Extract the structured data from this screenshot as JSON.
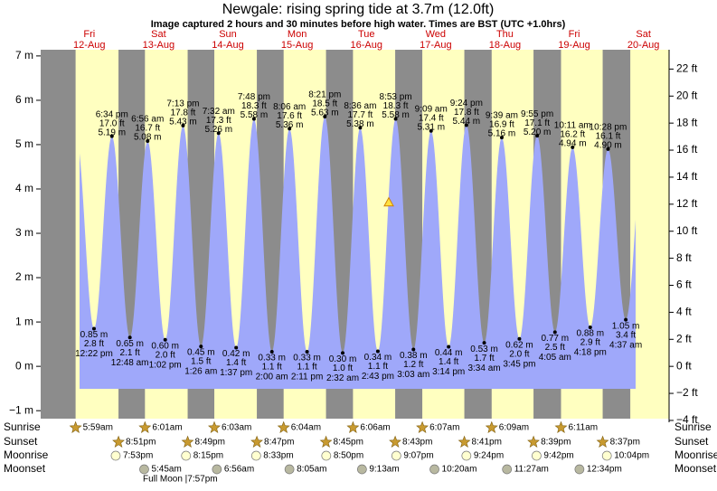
{
  "chart_data": {
    "type": "tide",
    "title": "Newgale: rising  spring tide at 3.7m (12.0ft)",
    "subtitle": "Image captured 2 hours and 30 minutes before high water. Times are BST (UTC +1.0hrs)",
    "days": [
      {
        "weekday": "Fri",
        "date": "12-Aug"
      },
      {
        "weekday": "Sat",
        "date": "13-Aug"
      },
      {
        "weekday": "Sun",
        "date": "14-Aug"
      },
      {
        "weekday": "Mon",
        "date": "15-Aug"
      },
      {
        "weekday": "Tue",
        "date": "16-Aug"
      },
      {
        "weekday": "Wed",
        "date": "17-Aug"
      },
      {
        "weekday": "Thu",
        "date": "18-Aug"
      },
      {
        "weekday": "Fri",
        "date": "19-Aug"
      },
      {
        "weekday": "Sat",
        "date": "20-Aug"
      }
    ],
    "tides": {
      "times": [
        "12:22 pm",
        "6:34 pm",
        "12:48 am",
        "6:56 am",
        "1:02 pm",
        "7:13 pm",
        "1:26 am",
        "7:32 am",
        "1:37 pm",
        "7:48 pm",
        "2:00 am",
        "8:06 am",
        "2:11 pm",
        "8:21 pm",
        "2:32 am",
        "8:36 am",
        "2:43 pm",
        "8:53 pm",
        "3:03 am",
        "9:09 am",
        "3:14 pm",
        "9:24 pm",
        "3:34 am",
        "9:39 am",
        "3:45 pm",
        "9:55 pm",
        "4:05 am",
        "10:11 am",
        "4:18 pm",
        "10:28 pm",
        "4:37 am"
      ],
      "values": [
        0.85,
        5.19,
        0.65,
        5.08,
        0.6,
        5.43,
        0.45,
        5.26,
        0.42,
        5.58,
        0.33,
        5.36,
        0.33,
        5.63,
        0.3,
        5.38,
        0.34,
        5.58,
        0.38,
        5.31,
        0.44,
        5.44,
        0.53,
        5.16,
        0.62,
        5.2,
        0.77,
        4.94,
        0.88,
        4.9,
        1.05
      ],
      "value_labels": [
        "0.85 m",
        "5.19 m",
        "0.65 m",
        "5.08 m",
        "0.60 m",
        "5.43 m",
        "0.45 m",
        "5.26 m",
        "0.42 m",
        "5.58 m",
        "0.33 m",
        "5.36 m",
        "0.33 m",
        "5.63 m",
        "0.30 m",
        "5.38 m",
        "0.34 m",
        "5.58 m",
        "0.38 m",
        "5.31 m",
        "0.44 m",
        "5.44 m",
        "0.53 m",
        "5.16 m",
        "0.62 m",
        "5.20 m",
        "0.77 m",
        "4.94 m",
        "0.88 m",
        "4.90 m",
        "1.05 m"
      ],
      "values_ft": [
        2.8,
        17.0,
        2.1,
        16.7,
        2.0,
        17.8,
        1.5,
        17.3,
        1.4,
        18.3,
        1.1,
        17.6,
        1.1,
        18.5,
        1.0,
        17.7,
        1.1,
        18.3,
        1.2,
        17.4,
        1.4,
        17.8,
        1.7,
        16.9,
        2.0,
        17.1,
        2.5,
        16.2,
        2.9,
        16.1,
        3.4
      ],
      "value_labels_ft": [
        "2.8 ft",
        "17.0 ft",
        "2.1 ft",
        "16.7 ft",
        "2.0 ft",
        "17.8 ft",
        "1.5 ft",
        "17.3 ft",
        "1.4 ft",
        "18.3 ft",
        "1.1 ft",
        "17.6 ft",
        "1.1 ft",
        "18.5 ft",
        "1.0 ft",
        "17.7 ft",
        "1.1 ft",
        "18.3 ft",
        "1.2 ft",
        "17.4 ft",
        "1.4 ft",
        "17.8 ft",
        "1.7 ft",
        "16.9 ft",
        "2.0 ft",
        "17.1 ft",
        "2.5 ft",
        "16.2 ft",
        "2.9 ft",
        "16.1 ft",
        "3.4 ft"
      ]
    },
    "now_marker": 3.7,
    "ylim": [
      -1.18,
      7.14
    ],
    "yticks": [
      {
        "value": 7,
        "label": "7 m"
      },
      {
        "value": 6,
        "label": "6 m"
      },
      {
        "value": 5,
        "label": "5 m"
      },
      {
        "value": 4,
        "label": "4 m"
      },
      {
        "value": 3,
        "label": "3 m"
      },
      {
        "value": 2,
        "label": "2 m"
      },
      {
        "value": 1,
        "label": "1 m"
      },
      {
        "value": 0,
        "label": "0 m"
      },
      {
        "value": -1,
        "label": "−1 m"
      }
    ],
    "y2lim": [
      -3.87,
      23.43
    ],
    "y2ticks": [
      {
        "value": 22,
        "label": "22 ft"
      },
      {
        "value": 20,
        "label": "20 ft"
      },
      {
        "value": 18,
        "label": "18 ft"
      },
      {
        "value": 16,
        "label": "16 ft"
      },
      {
        "value": 14,
        "label": "14 ft"
      },
      {
        "value": 12,
        "label": "12 ft"
      },
      {
        "value": 10,
        "label": "10 ft"
      },
      {
        "value": 8,
        "label": "8 ft"
      },
      {
        "value": 6,
        "label": "6 ft"
      },
      {
        "value": 4,
        "label": "4 ft"
      },
      {
        "value": 2,
        "label": "2 ft"
      },
      {
        "value": 0,
        "label": "0 ft"
      },
      {
        "value": -2,
        "label": "−2 ft"
      },
      {
        "value": -4,
        "label": "−4 ft"
      }
    ],
    "colors": {
      "water": "#9fa8fa",
      "day": "#ffffc0",
      "night": "#8c8c8c"
    }
  },
  "almanac": {
    "rows": [
      {
        "name": "Sunrise",
        "times": [
          "5:59am",
          "6:01am",
          "6:03am",
          "6:04am",
          "6:06am",
          "6:07am",
          "6:09am",
          "6:11am"
        ]
      },
      {
        "name": "Sunset",
        "times": [
          "8:51pm",
          "8:49pm",
          "8:47pm",
          "8:45pm",
          "8:43pm",
          "8:41pm",
          "8:39pm",
          "8:37pm"
        ]
      },
      {
        "name": "Moonrise",
        "times": [
          "7:53pm",
          "8:15pm",
          "8:33pm",
          "8:50pm",
          "9:07pm",
          "9:24pm",
          "9:42pm",
          "10:04pm"
        ]
      },
      {
        "name": "Moonset",
        "times": [
          "5:45am",
          "6:56am",
          "8:05am",
          "9:13am",
          "10:20am",
          "11:27am",
          "12:34pm"
        ]
      }
    ],
    "full_moon": "Full Moon |7:57pm"
  }
}
